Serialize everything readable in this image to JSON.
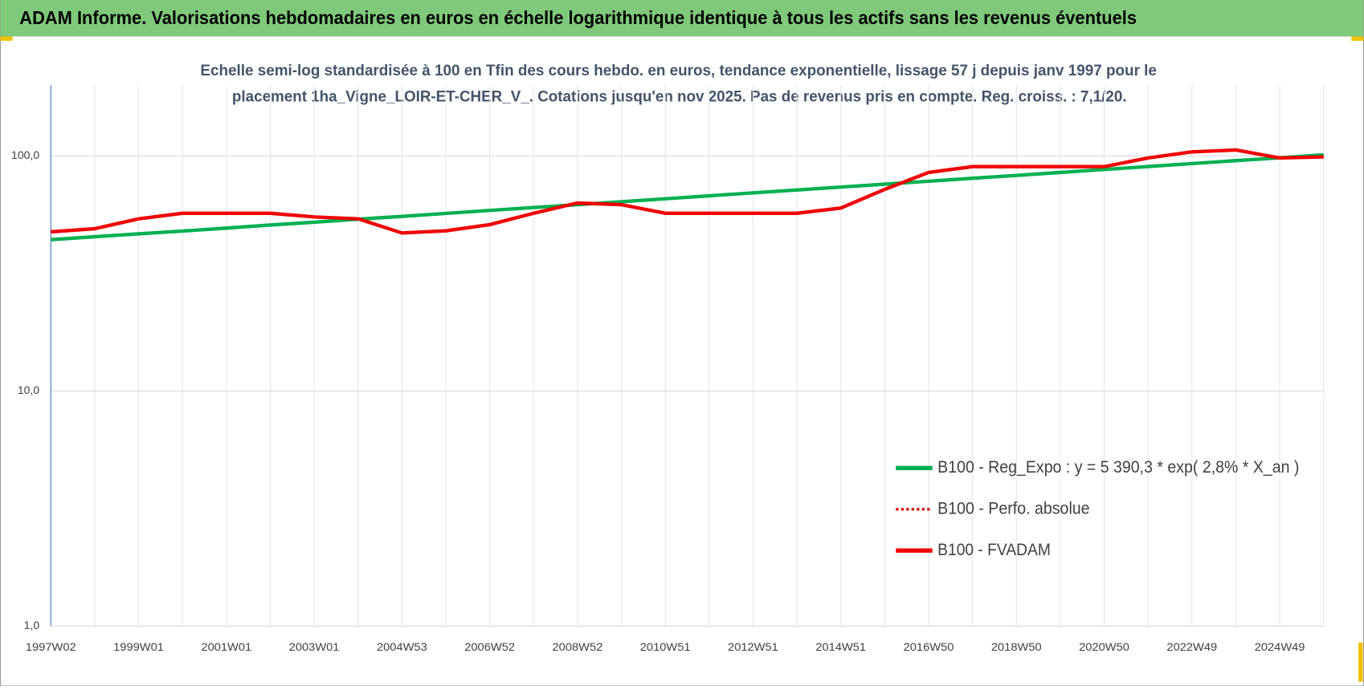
{
  "chart_data": {
    "type": "line",
    "title": "ADAM Informe. Valorisations hebdomadaires en euros en échelle logarithmique identique à tous les actifs sans les revenus éventuels",
    "subtitle": [
      "Echelle semi-log standardisée à 100 en Tfin des cours hebdo. en euros, tendance exponentielle, lissage 57 j depuis janv 1997 pour le",
      "placement 1ha_Vigne_LOIR-ET-CHER_V_. Cotations jusqu'en nov 2025.  Pas de revenus pris en compte. Reg. croiss. : 7,1/20."
    ],
    "categories": [
      "1997W02",
      null,
      "1999W01",
      null,
      "2001W01",
      null,
      "2003W01",
      null,
      "2004W53",
      null,
      "2006W52",
      null,
      "2008W52",
      null,
      "2010W51",
      null,
      "2012W51",
      null,
      "2014W51",
      null,
      "2016W50",
      null,
      "2018W50",
      null,
      "2020W50",
      null,
      "2022W49",
      null,
      "2024W49",
      null
    ],
    "series": [
      {
        "name": "B100 - Reg_Expo : y = 5 390,3 * exp( 2,8% *  X_an )",
        "color": "#00b050",
        "style": "solid",
        "values": [
          44,
          45.3,
          46.6,
          47.9,
          49.3,
          50.8,
          52.2,
          53.8,
          55.3,
          56.9,
          58.6,
          60.3,
          62.0,
          63.8,
          65.7,
          67.6,
          69.6,
          71.6,
          73.7,
          75.8,
          78.0,
          80.3,
          82.6,
          85.0,
          87.5,
          90.1,
          92.7,
          95.4,
          98.1,
          101.0
        ]
      },
      {
        "name": "B100 - Perfo. absolue",
        "color": "#e00000",
        "style": "dotted",
        "values": [
          47.5,
          49,
          54,
          57,
          57,
          57,
          55,
          54,
          47,
          48,
          51,
          57,
          63,
          62,
          57,
          57,
          57,
          57,
          60,
          72,
          85,
          90,
          90,
          90,
          90,
          98,
          104,
          106,
          98,
          99
        ]
      },
      {
        "name": "B100 - FVADAM",
        "color": "#f00000",
        "style": "solid",
        "values": [
          47.5,
          49,
          54,
          57,
          57,
          57,
          55,
          54,
          47,
          48,
          51,
          57,
          63,
          62,
          57,
          57,
          57,
          57,
          60,
          72,
          85,
          90,
          90,
          90,
          90,
          98,
          104,
          106,
          98,
          99
        ]
      }
    ],
    "ylim": [
      1,
      200
    ],
    "log_scale": true,
    "yticks": [
      {
        "value": 1,
        "label": "1,0"
      },
      {
        "value": 10,
        "label": "10,0"
      },
      {
        "value": 100,
        "label": "100,0"
      }
    ],
    "grid": true,
    "legend": "right"
  }
}
